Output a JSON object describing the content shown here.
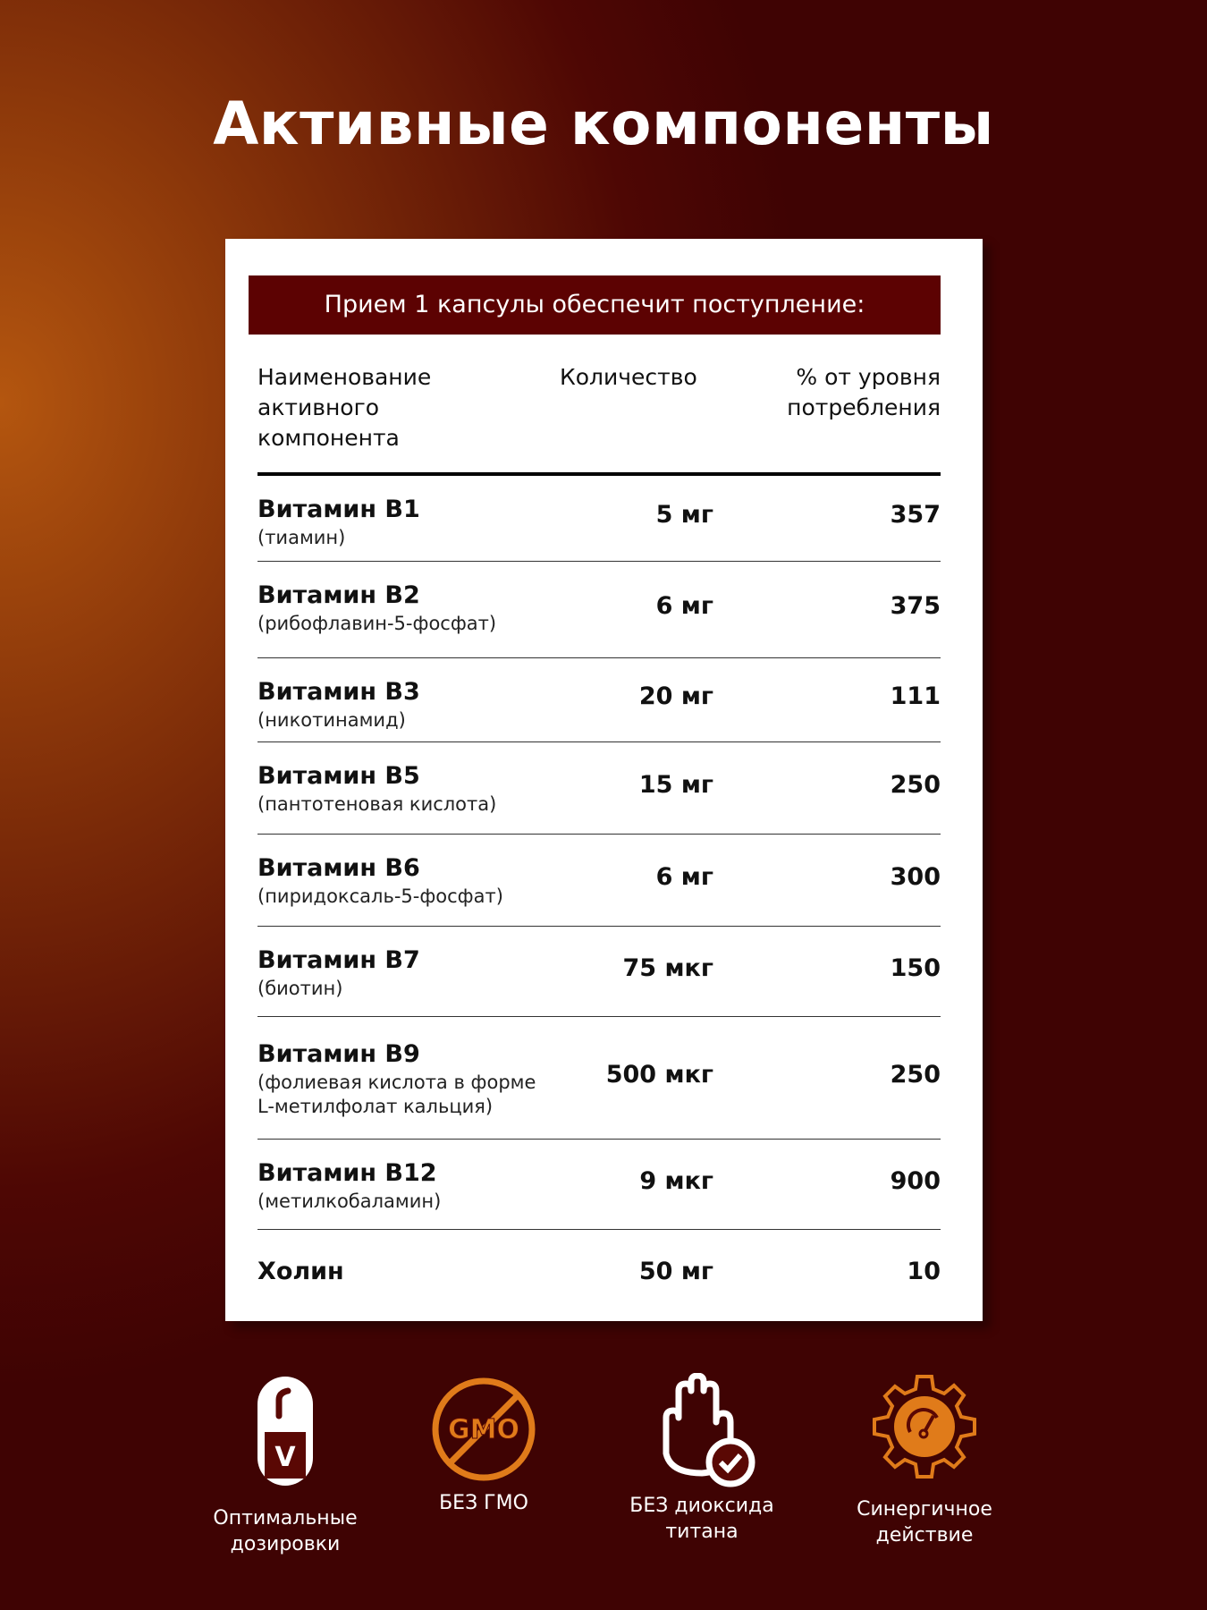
{
  "title": "Активные компоненты",
  "banner": "Прием 1 капсулы обеспечит поступление:",
  "headers": {
    "name": "Наименование активного компонента",
    "qty": "Количество",
    "pct": "% от уровня потребления"
  },
  "rows": [
    {
      "name": "Витамин B1",
      "sub": "(тиамин)",
      "qty": "5 мг",
      "pct": "357"
    },
    {
      "name": "Витамин B2",
      "sub": "(рибофлавин-5-фосфат)",
      "qty": "6 мг",
      "pct": "375"
    },
    {
      "name": "Витамин B3",
      "sub": "(никотинамид)",
      "qty": "20 мг",
      "pct": "111"
    },
    {
      "name": "Витамин B5",
      "sub": "(пантотеновая кислота)",
      "qty": "15 мг",
      "pct": "250"
    },
    {
      "name": "Витамин B6",
      "sub": "(пиридоксаль-5-фосфат)",
      "qty": "6 мг",
      "pct": "300"
    },
    {
      "name": "Витамин B7",
      "sub": "(биотин)",
      "qty": "75 мкг",
      "pct": "150"
    },
    {
      "name": "Витамин B9",
      "sub": "(фолиевая кислота в форме L-метилфолат кальция)",
      "qty": "500 мкг",
      "pct": "250"
    },
    {
      "name": "Витамин B12",
      "sub": "(метилкобаламин)",
      "qty": "9 мкг",
      "pct": "900"
    },
    {
      "name": "Холин",
      "qty": "50 мг",
      "pct": "10"
    }
  ],
  "features": [
    {
      "icon": "capsule-icon",
      "label": "Оптимальные дозировки"
    },
    {
      "icon": "no-gmo-icon",
      "label": "БЕЗ ГМО",
      "icon_text": "GMO"
    },
    {
      "icon": "hand-check-icon",
      "label": "БЕЗ диоксида титана"
    },
    {
      "icon": "gear-gauge-icon",
      "label": "Синергичное действие"
    }
  ],
  "colors": {
    "banner": "#5c0202",
    "accent": "#e07b1a",
    "background": "#4e0704"
  }
}
